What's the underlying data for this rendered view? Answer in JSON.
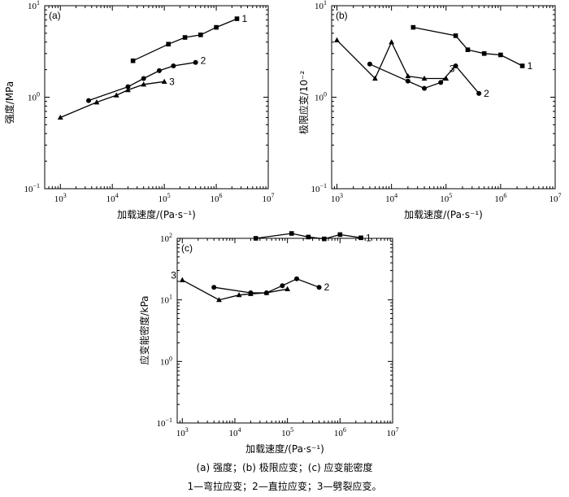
{
  "chart_data": [
    {
      "type": "line",
      "panel_label": "(a)",
      "ylabel": "强度/MPa",
      "xlabel": "加载速度/(Pa·s⁻¹)",
      "x_scale": "log",
      "y_scale": "log",
      "xlim": [
        500,
        10000000
      ],
      "ylim": [
        0.1,
        10
      ],
      "x_ticks": [
        {
          "base": "10",
          "exp": "3"
        },
        {
          "base": "10",
          "exp": "4"
        },
        {
          "base": "10",
          "exp": "5"
        },
        {
          "base": "10",
          "exp": "6"
        },
        {
          "base": "10",
          "exp": "7"
        }
      ],
      "y_ticks": [
        {
          "v": 10,
          "base": "10",
          "exp": "1"
        },
        {
          "v": 1,
          "base": "10",
          "exp": "0"
        },
        {
          "v": 0.1,
          "base": "10",
          "exp": "−1"
        }
      ],
      "series": [
        {
          "name": "1",
          "marker": "square",
          "x": [
            25000,
            120000,
            250000,
            500000,
            1000000,
            2500000
          ],
          "y": [
            2.5,
            3.8,
            4.5,
            4.8,
            5.8,
            7.2
          ]
        },
        {
          "name": "2",
          "marker": "circle",
          "x": [
            3500,
            20000,
            40000,
            80000,
            150000,
            400000
          ],
          "y": [
            0.92,
            1.3,
            1.6,
            1.95,
            2.2,
            2.4
          ]
        },
        {
          "name": "3",
          "marker": "triangle",
          "x": [
            1000,
            5000,
            12000,
            20000,
            40000,
            100000
          ],
          "y": [
            0.6,
            0.88,
            1.05,
            1.2,
            1.38,
            1.48
          ]
        }
      ]
    },
    {
      "type": "line",
      "panel_label": "(b)",
      "ylabel": "极限应变/10⁻²",
      "xlabel": "加载速度/(Pa·s⁻¹)",
      "x_scale": "log",
      "y_scale": "log",
      "xlim": [
        800,
        10000000
      ],
      "ylim": [
        0.1,
        10
      ],
      "x_ticks": [
        {
          "base": "10",
          "exp": "3"
        },
        {
          "base": "10",
          "exp": "4"
        },
        {
          "base": "10",
          "exp": "5"
        },
        {
          "base": "10",
          "exp": "6"
        },
        {
          "base": "10",
          "exp": "7"
        }
      ],
      "y_ticks": [
        {
          "v": 10,
          "base": "10",
          "exp": "1"
        },
        {
          "v": 1,
          "base": "10",
          "exp": "0"
        },
        {
          "v": 0.1,
          "base": "10",
          "exp": "−1"
        }
      ],
      "series": [
        {
          "name": "1",
          "marker": "square",
          "x": [
            25000,
            150000,
            250000,
            500000,
            1000000,
            2500000
          ],
          "y": [
            5.8,
            4.7,
            3.3,
            3.0,
            2.9,
            2.2
          ]
        },
        {
          "name": "2",
          "marker": "circle",
          "x": [
            4000,
            20000,
            40000,
            80000,
            150000,
            400000
          ],
          "y": [
            2.3,
            1.5,
            1.25,
            1.45,
            2.2,
            1.1
          ]
        },
        {
          "name": "3",
          "marker": "triangle",
          "x": [
            1000,
            5000,
            10000,
            20000,
            40000,
            100000
          ],
          "y": [
            4.2,
            1.6,
            4.0,
            1.7,
            1.6,
            1.6
          ]
        }
      ]
    },
    {
      "type": "line",
      "panel_label": "(c)",
      "ylabel": "应变能密度/kPa",
      "xlabel": "加载速度/(Pa·s⁻¹)",
      "x_scale": "log",
      "y_scale": "log",
      "xlim": [
        800,
        10000000
      ],
      "ylim": [
        0.1,
        100
      ],
      "x_ticks": [
        {
          "base": "10",
          "exp": "3"
        },
        {
          "base": "10",
          "exp": "4"
        },
        {
          "base": "10",
          "exp": "5"
        },
        {
          "base": "10",
          "exp": "6"
        },
        {
          "base": "10",
          "exp": "7"
        }
      ],
      "y_ticks": [
        {
          "v": 100,
          "base": "10",
          "exp": "2"
        },
        {
          "v": 10,
          "base": "10",
          "exp": "1"
        },
        {
          "v": 1,
          "base": "10",
          "exp": "0"
        },
        {
          "v": 0.1,
          "base": "10",
          "exp": "−1"
        }
      ],
      "series": [
        {
          "name": "1",
          "marker": "square",
          "x": [
            25000,
            120000,
            250000,
            500000,
            1000000,
            2500000
          ],
          "y": [
            100,
            120,
            105,
            98,
            115,
            102
          ]
        },
        {
          "name": "2",
          "marker": "circle",
          "x": [
            4000,
            20000,
            40000,
            80000,
            150000,
            400000
          ],
          "y": [
            16,
            13,
            13,
            17,
            22,
            16
          ]
        },
        {
          "name": "3",
          "marker": "triangle",
          "x": [
            1000,
            5000,
            12000,
            20000,
            40000,
            100000
          ],
          "y": [
            21,
            10,
            12,
            12.5,
            13,
            15
          ]
        }
      ]
    }
  ],
  "caption": {
    "line1": "(a) 强度；(b) 极限应变；(c) 应变能密度",
    "line2": "1—弯拉应变；2—直拉应变；3—劈裂应变。"
  }
}
